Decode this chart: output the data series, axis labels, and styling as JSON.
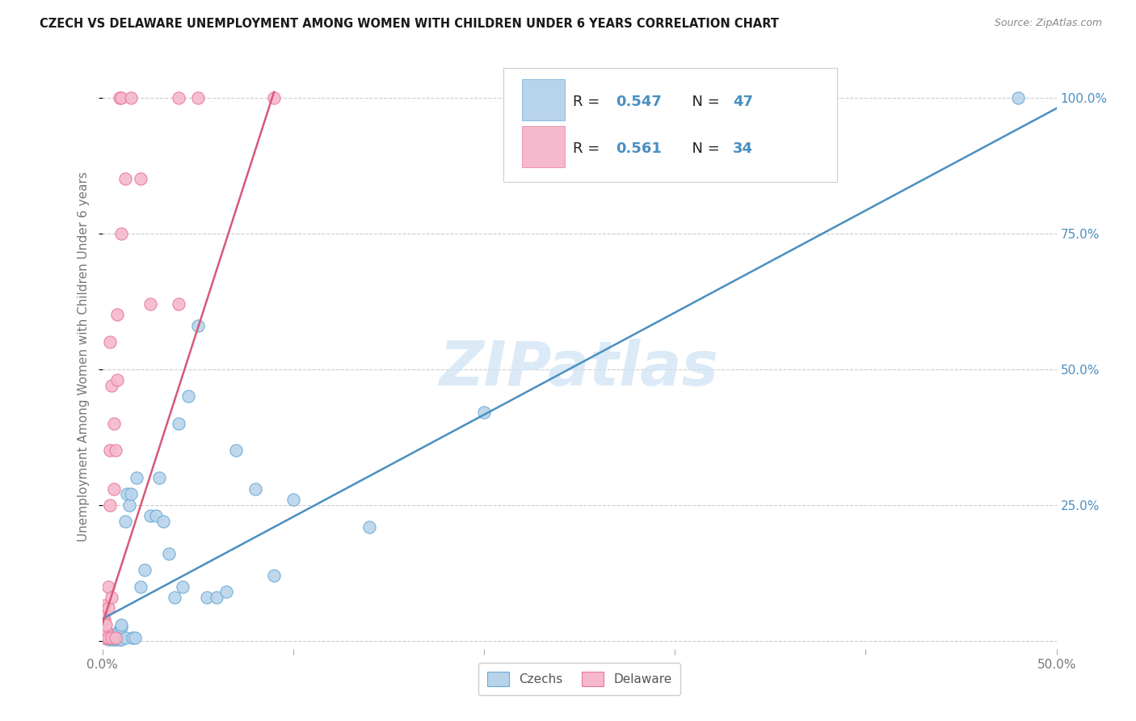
{
  "title": "CZECH VS DELAWARE UNEMPLOYMENT AMONG WOMEN WITH CHILDREN UNDER 6 YEARS CORRELATION CHART",
  "source": "Source: ZipAtlas.com",
  "ylabel": "Unemployment Among Women with Children Under 6 years",
  "xlim": [
    0.0,
    0.5
  ],
  "ylim": [
    -0.015,
    1.06
  ],
  "xticks": [
    0.0,
    0.1,
    0.2,
    0.3,
    0.4,
    0.5
  ],
  "xticklabels": [
    "0.0%",
    "",
    "",
    "",
    "",
    "50.0%"
  ],
  "yticks": [
    0.0,
    0.25,
    0.5,
    0.75,
    1.0
  ],
  "yticklabels": [
    "",
    "25.0%",
    "50.0%",
    "75.0%",
    "100.0%"
  ],
  "blue_R": "0.547",
  "blue_N": "47",
  "pink_R": "0.561",
  "pink_N": "34",
  "blue_fill": "#b8d4eb",
  "pink_fill": "#f5b8cc",
  "blue_edge": "#6aaad4",
  "pink_edge": "#e87898",
  "blue_line_color": "#4a8fc0",
  "pink_line_color": "#d85878",
  "watermark": "ZIPatlas",
  "background_color": "#ffffff",
  "blue_scatter_x": [
    0.002,
    0.002,
    0.003,
    0.004,
    0.004,
    0.005,
    0.006,
    0.006,
    0.007,
    0.007,
    0.008,
    0.008,
    0.009,
    0.009,
    0.01,
    0.01,
    0.01,
    0.012,
    0.012,
    0.013,
    0.014,
    0.015,
    0.016,
    0.017,
    0.018,
    0.02,
    0.022,
    0.025,
    0.028,
    0.03,
    0.032,
    0.035,
    0.038,
    0.04,
    0.042,
    0.045,
    0.05,
    0.055,
    0.06,
    0.065,
    0.07,
    0.08,
    0.09,
    0.1,
    0.14,
    0.2,
    0.48
  ],
  "blue_scatter_y": [
    0.005,
    0.012,
    0.002,
    0.005,
    0.008,
    0.003,
    0.002,
    0.006,
    0.003,
    0.01,
    0.004,
    0.015,
    0.003,
    0.02,
    0.003,
    0.025,
    0.03,
    0.005,
    0.22,
    0.27,
    0.25,
    0.27,
    0.005,
    0.005,
    0.3,
    0.1,
    0.13,
    0.23,
    0.23,
    0.3,
    0.22,
    0.16,
    0.08,
    0.4,
    0.1,
    0.45,
    0.58,
    0.08,
    0.08,
    0.09,
    0.35,
    0.28,
    0.12,
    0.26,
    0.21,
    0.42,
    1.0
  ],
  "pink_scatter_x": [
    0.001,
    0.001,
    0.001,
    0.001,
    0.001,
    0.002,
    0.002,
    0.002,
    0.003,
    0.003,
    0.003,
    0.004,
    0.004,
    0.004,
    0.005,
    0.005,
    0.005,
    0.006,
    0.006,
    0.007,
    0.007,
    0.008,
    0.008,
    0.009,
    0.01,
    0.01,
    0.012,
    0.015,
    0.02,
    0.025,
    0.04,
    0.04,
    0.05,
    0.09
  ],
  "pink_scatter_y": [
    0.005,
    0.015,
    0.04,
    0.05,
    0.065,
    0.005,
    0.02,
    0.03,
    0.005,
    0.06,
    0.1,
    0.25,
    0.35,
    0.55,
    0.005,
    0.08,
    0.47,
    0.28,
    0.4,
    0.005,
    0.35,
    0.48,
    0.6,
    1.0,
    1.0,
    0.75,
    0.85,
    1.0,
    0.85,
    0.62,
    1.0,
    0.62,
    1.0,
    1.0
  ],
  "blue_line_x": [
    0.0,
    0.5
  ],
  "blue_line_y": [
    0.04,
    0.98
  ],
  "pink_line_x": [
    0.0,
    0.09
  ],
  "pink_line_y": [
    0.03,
    1.01
  ]
}
